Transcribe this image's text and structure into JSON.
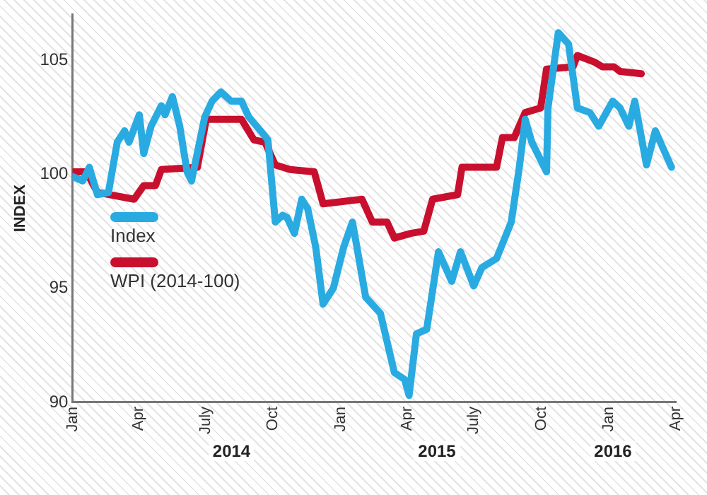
{
  "chart_data": {
    "type": "line",
    "ylabel": "INDEX",
    "xlim": [
      "2014-01-01",
      "2016-04-01"
    ],
    "xticks": [
      {
        "value": "2014-01-01",
        "label": "Jan"
      },
      {
        "value": "2014-04-01",
        "label": "Apr"
      },
      {
        "value": "2014-07-01",
        "label": "July"
      },
      {
        "value": "2014-10-01",
        "label": "Oct"
      },
      {
        "value": "2015-01-01",
        "label": "Jan"
      },
      {
        "value": "2015-04-01",
        "label": "Apr"
      },
      {
        "value": "2015-07-01",
        "label": "July"
      },
      {
        "value": "2015-10-01",
        "label": "Oct"
      },
      {
        "value": "2016-01-01",
        "label": "Jan"
      },
      {
        "value": "2016-04-01",
        "label": "Apr"
      }
    ],
    "ylim": [
      90,
      107
    ],
    "yticks": [
      90,
      95,
      100,
      105
    ],
    "grid": false,
    "legend": "left",
    "marker": "none",
    "line_style": "solid",
    "annotations": [
      "2014",
      "2015",
      "2016"
    ],
    "series": [
      {
        "name": "Index",
        "color": "#29abe2",
        "x": [
          "2014-01-01",
          "2014-01-15",
          "2014-01-24",
          "2014-02-04",
          "2014-02-19",
          "2014-03-03",
          "2014-03-13",
          "2014-03-19",
          "2014-04-02",
          "2014-04-08",
          "2014-04-18",
          "2014-05-02",
          "2014-05-07",
          "2014-05-17",
          "2014-05-27",
          "2014-06-06",
          "2014-06-12",
          "2014-06-30",
          "2014-07-10",
          "2014-07-22",
          "2014-08-05",
          "2014-08-19",
          "2014-08-29",
          "2014-09-14",
          "2014-09-24",
          "2014-10-04",
          "2014-10-14",
          "2014-10-20",
          "2014-10-30",
          "2014-11-09",
          "2014-11-17",
          "2014-11-28",
          "2014-12-08",
          "2014-12-22",
          "2015-01-05",
          "2015-01-17",
          "2015-02-04",
          "2015-02-24",
          "2015-03-15",
          "2015-03-29",
          "2015-04-04",
          "2015-04-14",
          "2015-04-28",
          "2015-05-14",
          "2015-06-01",
          "2015-06-13",
          "2015-07-01",
          "2015-07-12",
          "2015-08-01",
          "2015-08-21",
          "2015-09-01",
          "2015-09-09",
          "2015-09-18",
          "2015-10-08",
          "2015-10-10",
          "2015-10-24",
          "2015-11-07",
          "2015-11-19",
          "2015-12-06",
          "2015-12-18",
          "2016-01-06",
          "2016-01-16",
          "2016-01-28",
          "2016-02-05",
          "2016-02-21",
          "2016-03-04",
          "2016-03-26"
        ],
        "values": [
          99.9,
          99.7,
          100.3,
          99.1,
          99.2,
          101.4,
          101.9,
          101.4,
          102.6,
          100.9,
          102.1,
          103,
          102.6,
          103.4,
          102.1,
          100.1,
          99.7,
          102.5,
          103.2,
          103.6,
          103.2,
          103.2,
          102.5,
          101.9,
          101.5,
          97.9,
          98.2,
          98.1,
          97.4,
          98.9,
          98.5,
          96.8,
          94.3,
          95,
          96.8,
          97.9,
          94.6,
          93.9,
          91.3,
          91,
          90.3,
          93,
          93.2,
          96.6,
          95.3,
          96.6,
          95.1,
          95.9,
          96.3,
          97.9,
          100.3,
          102.4,
          101.4,
          100.1,
          102.9,
          106.2,
          105.7,
          102.9,
          102.7,
          102.1,
          103.2,
          102.9,
          102.1,
          103.2,
          100.4,
          101.9,
          100.3
        ]
      },
      {
        "name": "WPI (2014-100)",
        "color": "#c8102e",
        "x": [
          "2014-01-01",
          "2014-01-20",
          "2014-02-04",
          "2014-03-26",
          "2014-04-08",
          "2014-04-24",
          "2014-05-02",
          "2014-06-20",
          "2014-07-02",
          "2014-08-19",
          "2014-09-05",
          "2014-09-20",
          "2014-10-04",
          "2014-10-24",
          "2014-11-26",
          "2014-12-08",
          "2015-01-30",
          "2015-02-13",
          "2015-03-05",
          "2015-03-15",
          "2015-04-06",
          "2015-04-24",
          "2015-05-06",
          "2015-06-09",
          "2015-06-15",
          "2015-08-01",
          "2015-08-09",
          "2015-08-25",
          "2015-09-09",
          "2015-09-30",
          "2015-10-08",
          "2015-11-13",
          "2015-11-19",
          "2015-12-13",
          "2015-12-23",
          "2016-01-08",
          "2016-01-16",
          "2016-02-14"
        ],
        "values": [
          100.1,
          100.1,
          99.2,
          98.9,
          99.5,
          99.5,
          100.2,
          100.3,
          102.4,
          102.4,
          101.5,
          101.4,
          100.4,
          100.2,
          100.1,
          98.7,
          98.9,
          97.9,
          97.9,
          97.2,
          97.4,
          97.5,
          98.9,
          99.1,
          100.3,
          100.3,
          101.6,
          101.6,
          102.7,
          102.9,
          104.6,
          104.7,
          105.2,
          104.9,
          104.7,
          104.7,
          104.5,
          104.4
        ]
      }
    ]
  }
}
